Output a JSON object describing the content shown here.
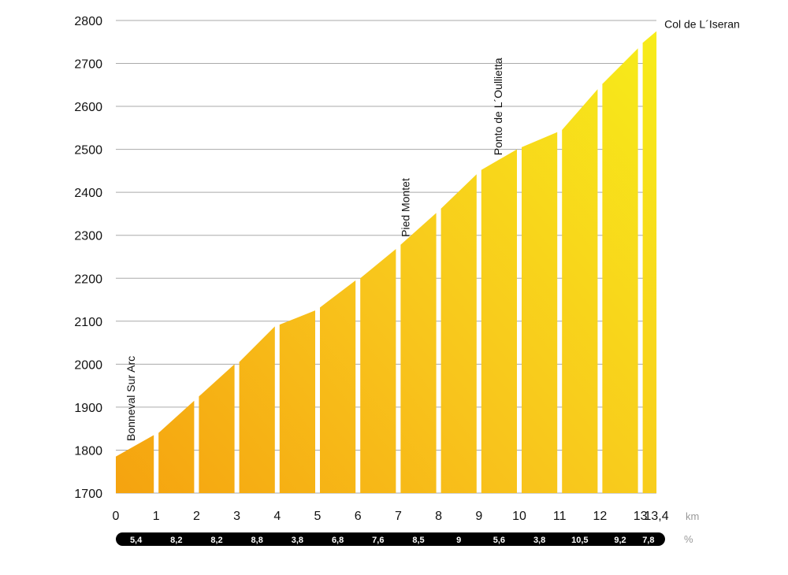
{
  "chart_data": {
    "type": "area",
    "title": "",
    "xlabel": "km",
    "ylabel": "",
    "xlim": [
      0,
      13.4
    ],
    "ylim": [
      1700,
      2800
    ],
    "y_ticks": [
      1700,
      1800,
      1900,
      2000,
      2100,
      2200,
      2300,
      2400,
      2500,
      2600,
      2700,
      2800
    ],
    "x_ticks": [
      {
        "value": 0,
        "label": "0"
      },
      {
        "value": 1,
        "label": "1"
      },
      {
        "value": 2,
        "label": "2"
      },
      {
        "value": 3,
        "label": "3"
      },
      {
        "value": 4,
        "label": "4"
      },
      {
        "value": 5,
        "label": "5"
      },
      {
        "value": 6,
        "label": "6"
      },
      {
        "value": 7,
        "label": "7"
      },
      {
        "value": 8,
        "label": "8"
      },
      {
        "value": 9,
        "label": "9"
      },
      {
        "value": 10,
        "label": "10"
      },
      {
        "value": 11,
        "label": "11"
      },
      {
        "value": 12,
        "label": "12"
      },
      {
        "value": 13,
        "label": "13"
      },
      {
        "value": 13.4,
        "label": "13,4"
      }
    ],
    "x_unit_label": "km",
    "grade_unit_label": "%",
    "segments": [
      {
        "km_start": 0,
        "km_end": 1,
        "elev_start": 1785,
        "elev_end": 1835,
        "grade": "5,4"
      },
      {
        "km_start": 1,
        "km_end": 2,
        "elev_start": 1840,
        "elev_end": 1915,
        "grade": "8,2"
      },
      {
        "km_start": 2,
        "km_end": 3,
        "elev_start": 1925,
        "elev_end": 2000,
        "grade": "8,2"
      },
      {
        "km_start": 3,
        "km_end": 4,
        "elev_start": 2005,
        "elev_end": 2088,
        "grade": "8,8"
      },
      {
        "km_start": 4,
        "km_end": 5,
        "elev_start": 2092,
        "elev_end": 2125,
        "grade": "3,8"
      },
      {
        "km_start": 5,
        "km_end": 6,
        "elev_start": 2132,
        "elev_end": 2195,
        "grade": "6,8"
      },
      {
        "km_start": 6,
        "km_end": 7,
        "elev_start": 2200,
        "elev_end": 2268,
        "grade": "7,6"
      },
      {
        "km_start": 7,
        "km_end": 8,
        "elev_start": 2278,
        "elev_end": 2352,
        "grade": "8,5"
      },
      {
        "km_start": 8,
        "km_end": 9,
        "elev_start": 2362,
        "elev_end": 2442,
        "grade": "9"
      },
      {
        "km_start": 9,
        "km_end": 10,
        "elev_start": 2452,
        "elev_end": 2500,
        "grade": "5,6"
      },
      {
        "km_start": 10,
        "km_end": 11,
        "elev_start": 2505,
        "elev_end": 2540,
        "grade": "3,8"
      },
      {
        "km_start": 11,
        "km_end": 12,
        "elev_start": 2545,
        "elev_end": 2640,
        "grade": "10,5"
      },
      {
        "km_start": 12,
        "km_end": 13,
        "elev_start": 2652,
        "elev_end": 2735,
        "grade": "9,2"
      },
      {
        "km_start": 13,
        "km_end": 13.4,
        "elev_start": 2748,
        "elev_end": 2775,
        "grade": "7,8"
      }
    ],
    "annotations": [
      {
        "text": "Bonneval Sur Arc",
        "km": 0.2,
        "elevation": 1810,
        "orientation": "vertical"
      },
      {
        "text": "Pied Montet",
        "km": 7.0,
        "elevation": 2285,
        "orientation": "vertical"
      },
      {
        "text": "Ponto de L´Oullietta",
        "km": 9.3,
        "elevation": 2475,
        "orientation": "vertical"
      },
      {
        "text": "Col de L´Iseran",
        "km": 13.4,
        "elevation": 2775,
        "orientation": "horizontal"
      }
    ],
    "grid": true
  }
}
